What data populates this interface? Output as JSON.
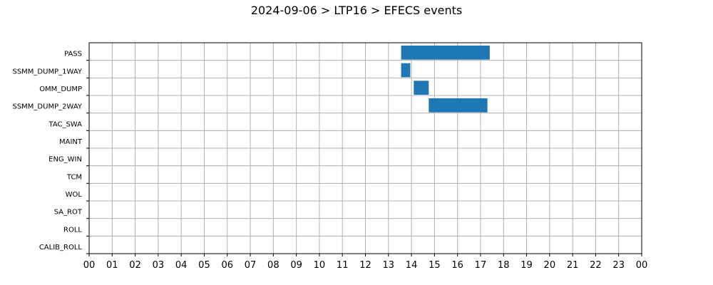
{
  "chart_data": {
    "type": "gantt",
    "title": "2024-09-06 > LTP16 > EFECS events",
    "xlabel": "",
    "ylabel": "",
    "x_range_hours": [
      0,
      24
    ],
    "x_tick_labels": [
      "00",
      "01",
      "02",
      "03",
      "04",
      "05",
      "06",
      "07",
      "08",
      "09",
      "10",
      "11",
      "12",
      "13",
      "14",
      "15",
      "16",
      "17",
      "18",
      "19",
      "20",
      "21",
      "22",
      "23",
      "00"
    ],
    "categories": [
      "PASS",
      "SSMM_DUMP_1WAY",
      "OMM_DUMP",
      "SSMM_DUMP_2WAY",
      "TAC_SWA",
      "MAINT",
      "ENG_WIN",
      "TCM",
      "WOL",
      "SA_ROT",
      "ROLL",
      "CALIB_ROLL"
    ],
    "events": [
      {
        "category": "PASS",
        "start_hour": 13.55,
        "end_hour": 17.4
      },
      {
        "category": "SSMM_DUMP_1WAY",
        "start_hour": 13.55,
        "end_hour": 13.95
      },
      {
        "category": "OMM_DUMP",
        "start_hour": 14.1,
        "end_hour": 14.75
      },
      {
        "category": "SSMM_DUMP_2WAY",
        "start_hour": 14.75,
        "end_hour": 17.3
      }
    ],
    "bar_color": "#1f77b4",
    "grid": true,
    "legend": "none"
  }
}
